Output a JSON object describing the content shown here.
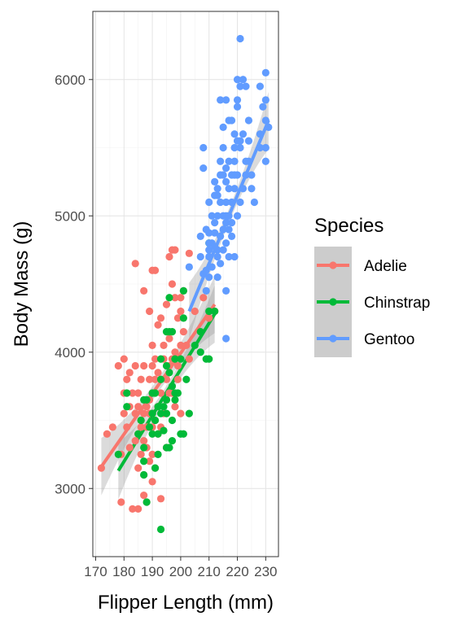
{
  "chart_data": {
    "type": "scatter",
    "xlabel": "Flipper Length (mm)",
    "ylabel": "Body Mass (g)",
    "xlim": [
      169,
      234.5
    ],
    "ylim": [
      2500,
      6500
    ],
    "x_ticks": [
      170,
      180,
      190,
      200,
      210,
      220,
      230
    ],
    "y_ticks": [
      3000,
      4000,
      5000,
      6000
    ],
    "grid": true,
    "legend_title": "Species",
    "legend_position": "right",
    "series": [
      {
        "name": "Adelie",
        "color": "#F8766D",
        "trend": {
          "x": [
            172,
            212
          ],
          "y": [
            3160,
            4350
          ]
        },
        "points": [
          [
            172,
            3150
          ],
          [
            174,
            3400
          ],
          [
            176,
            3450
          ],
          [
            178,
            3900
          ],
          [
            179,
            3250
          ],
          [
            179,
            2900
          ],
          [
            180,
            3550
          ],
          [
            180,
            3950
          ],
          [
            180,
            3700
          ],
          [
            181,
            3450
          ],
          [
            181,
            3800
          ],
          [
            182,
            3850
          ],
          [
            182,
            3600
          ],
          [
            182,
            3300
          ],
          [
            183,
            3700
          ],
          [
            183,
            2850
          ],
          [
            184,
            3550
          ],
          [
            184,
            3350
          ],
          [
            184,
            3900
          ],
          [
            184,
            4650
          ],
          [
            185,
            3150
          ],
          [
            185,
            3600
          ],
          [
            185,
            3400
          ],
          [
            185,
            2850
          ],
          [
            185,
            3700
          ],
          [
            186,
            3800
          ],
          [
            186,
            3500
          ],
          [
            186,
            3250
          ],
          [
            186,
            3450
          ],
          [
            187,
            3900
          ],
          [
            187,
            3550
          ],
          [
            187,
            3350
          ],
          [
            187,
            3100
          ],
          [
            187,
            2950
          ],
          [
            187,
            4450
          ],
          [
            188,
            3600
          ],
          [
            188,
            3450
          ],
          [
            188,
            3300
          ],
          [
            188,
            2900
          ],
          [
            189,
            3800
          ],
          [
            189,
            3550
          ],
          [
            189,
            3200
          ],
          [
            189,
            3650
          ],
          [
            189,
            4300
          ],
          [
            190,
            3700
          ],
          [
            190,
            3450
          ],
          [
            190,
            3050
          ],
          [
            190,
            3900
          ],
          [
            190,
            4050
          ],
          [
            190,
            3250
          ],
          [
            190,
            3550
          ],
          [
            190,
            4600
          ],
          [
            191,
            3800
          ],
          [
            191,
            3500
          ],
          [
            191,
            3150
          ],
          [
            191,
            3950
          ],
          [
            191,
            4600
          ],
          [
            192,
            3600
          ],
          [
            192,
            3850
          ],
          [
            192,
            3400
          ],
          [
            192,
            4200
          ],
          [
            193,
            3800
          ],
          [
            193,
            3700
          ],
          [
            193,
            3450
          ],
          [
            193,
            4250
          ],
          [
            193,
            2925
          ],
          [
            194,
            3950
          ],
          [
            194,
            3550
          ],
          [
            194,
            4050
          ],
          [
            195,
            3800
          ],
          [
            195,
            3300
          ],
          [
            195,
            4350
          ],
          [
            195,
            3650
          ],
          [
            196,
            3700
          ],
          [
            196,
            4100
          ],
          [
            196,
            3900
          ],
          [
            196,
            4700
          ],
          [
            197,
            4500
          ],
          [
            197,
            3950
          ],
          [
            197,
            3700
          ],
          [
            197,
            4750
          ],
          [
            198,
            4000
          ],
          [
            198,
            3600
          ],
          [
            198,
            4400
          ],
          [
            198,
            4750
          ],
          [
            199,
            3900
          ],
          [
            199,
            4250
          ],
          [
            199,
            3800
          ],
          [
            200,
            4050
          ],
          [
            200,
            3550
          ],
          [
            200,
            4300
          ],
          [
            200,
            4400
          ],
          [
            201,
            4150
          ],
          [
            201,
            4450
          ],
          [
            202,
            4050
          ],
          [
            203,
            3950
          ],
          [
            203,
            4725
          ],
          [
            205,
            4300
          ],
          [
            208,
            4400
          ],
          [
            210,
            4250
          ],
          [
            212,
            4300
          ]
        ]
      },
      {
        "name": "Chinstrap",
        "color": "#00BA38",
        "trend": {
          "x": [
            178,
            212
          ],
          "y": [
            3130,
            4280
          ]
        },
        "points": [
          [
            178,
            3250
          ],
          [
            181,
            3700
          ],
          [
            181,
            3600
          ],
          [
            185,
            3400
          ],
          [
            186,
            3500
          ],
          [
            187,
            3650
          ],
          [
            187,
            3300
          ],
          [
            187,
            3200
          ],
          [
            187,
            3100
          ],
          [
            188,
            2900
          ],
          [
            188,
            3650
          ],
          [
            189,
            3450
          ],
          [
            190,
            3550
          ],
          [
            190,
            3700
          ],
          [
            190,
            3400
          ],
          [
            190,
            3550
          ],
          [
            191,
            3500
          ],
          [
            191,
            3700
          ],
          [
            191,
            3150
          ],
          [
            192,
            3600
          ],
          [
            192,
            3400
          ],
          [
            192,
            3250
          ],
          [
            193,
            3550
          ],
          [
            193,
            3800
          ],
          [
            193,
            2700
          ],
          [
            193,
            3950
          ],
          [
            194,
            3600
          ],
          [
            194,
            3425
          ],
          [
            195,
            3650
          ],
          [
            195,
            3550
          ],
          [
            195,
            3900
          ],
          [
            195,
            4150
          ],
          [
            195,
            3300
          ],
          [
            196,
            3850
          ],
          [
            196,
            4150
          ],
          [
            196,
            3300
          ],
          [
            196,
            4400
          ],
          [
            197,
            3750
          ],
          [
            197,
            3500
          ],
          [
            197,
            4150
          ],
          [
            197,
            3350
          ],
          [
            198,
            3700
          ],
          [
            198,
            3950
          ],
          [
            198,
            3650
          ],
          [
            199,
            3700
          ],
          [
            200,
            3950
          ],
          [
            200,
            3400
          ],
          [
            201,
            4250
          ],
          [
            201,
            3400
          ],
          [
            201,
            4450
          ],
          [
            202,
            3800
          ],
          [
            203,
            3550
          ],
          [
            205,
            4050
          ],
          [
            207,
            4000
          ],
          [
            207,
            4150
          ],
          [
            209,
            3950
          ],
          [
            210,
            4800
          ],
          [
            210,
            4300
          ],
          [
            210,
            3950
          ],
          [
            212,
            4300
          ]
        ]
      },
      {
        "name": "Gentoo",
        "color": "#619CFF",
        "trend": {
          "x": [
            203,
            231
          ],
          "y": [
            4300,
            5700
          ]
        },
        "points": [
          [
            203,
            4625
          ],
          [
            207,
            4700
          ],
          [
            207,
            4850
          ],
          [
            208,
            4575
          ],
          [
            208,
            5350
          ],
          [
            208,
            5500
          ],
          [
            209,
            4450
          ],
          [
            209,
            4900
          ],
          [
            209,
            4600
          ],
          [
            210,
            4750
          ],
          [
            210,
            4550
          ],
          [
            210,
            4875
          ],
          [
            210,
            5100
          ],
          [
            210,
            4700
          ],
          [
            210,
            4800
          ],
          [
            211,
            4625
          ],
          [
            211,
            5000
          ],
          [
            211,
            4800
          ],
          [
            212,
            4775
          ],
          [
            212,
            4875
          ],
          [
            212,
            4950
          ],
          [
            212,
            5150
          ],
          [
            212,
            5250
          ],
          [
            213,
            4550
          ],
          [
            213,
            4750
          ],
          [
            213,
            5150
          ],
          [
            213,
            5200
          ],
          [
            213,
            4700
          ],
          [
            213,
            5000
          ],
          [
            214,
            4850
          ],
          [
            214,
            5100
          ],
          [
            214,
            5300
          ],
          [
            214,
            5400
          ],
          [
            214,
            4650
          ],
          [
            214,
            5850
          ],
          [
            215,
            4900
          ],
          [
            215,
            5000
          ],
          [
            215,
            5300
          ],
          [
            215,
            5500
          ],
          [
            215,
            4750
          ],
          [
            215,
            5650
          ],
          [
            216,
            4950
          ],
          [
            216,
            4800
          ],
          [
            216,
            5000
          ],
          [
            216,
            5350
          ],
          [
            216,
            5100
          ],
          [
            216,
            5250
          ],
          [
            216,
            4450
          ],
          [
            216,
            5850
          ],
          [
            216,
            4100
          ],
          [
            217,
            5700
          ],
          [
            217,
            4900
          ],
          [
            217,
            5000
          ],
          [
            217,
            5200
          ],
          [
            217,
            5400
          ],
          [
            217,
            4700
          ],
          [
            218,
            4950
          ],
          [
            218,
            5300
          ],
          [
            218,
            5100
          ],
          [
            218,
            5700
          ],
          [
            218,
            4850
          ],
          [
            219,
            5500
          ],
          [
            219,
            5200
          ],
          [
            219,
            5300
          ],
          [
            219,
            5600
          ],
          [
            219,
            5400
          ],
          [
            219,
            4700
          ],
          [
            220,
            5000
          ],
          [
            220,
            5300
          ],
          [
            220,
            5850
          ],
          [
            220,
            5800
          ],
          [
            220,
            6000
          ],
          [
            220,
            5550
          ],
          [
            221,
            5100
          ],
          [
            221,
            5500
          ],
          [
            221,
            5950
          ],
          [
            221,
            6300
          ],
          [
            221,
            5550
          ],
          [
            222,
            5200
          ],
          [
            222,
            5600
          ],
          [
            222,
            6000
          ],
          [
            223,
            5300
          ],
          [
            223,
            5950
          ],
          [
            223,
            5400
          ],
          [
            224,
            5400
          ],
          [
            224,
            5550
          ],
          [
            224,
            5700
          ],
          [
            225,
            5200
          ],
          [
            225,
            5300
          ],
          [
            226,
            5100
          ],
          [
            228,
            5600
          ],
          [
            228,
            5950
          ],
          [
            228,
            5500
          ],
          [
            229,
            5800
          ],
          [
            230,
            5400
          ],
          [
            230,
            5700
          ],
          [
            230,
            5500
          ],
          [
            230,
            5850
          ],
          [
            230,
            6050
          ],
          [
            231,
            5650
          ]
        ]
      }
    ]
  }
}
